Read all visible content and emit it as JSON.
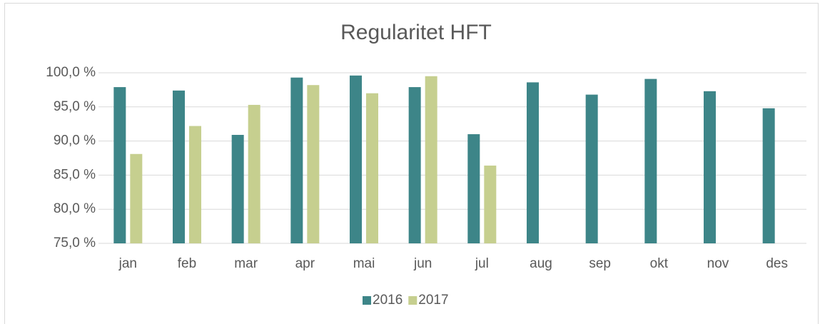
{
  "chart_data": {
    "type": "bar",
    "title": "Regularitet HFT",
    "categories": [
      "jan",
      "feb",
      "mar",
      "apr",
      "mai",
      "jun",
      "jul",
      "aug",
      "sep",
      "okt",
      "nov",
      "des"
    ],
    "series": [
      {
        "name": "2016",
        "color": "#3d8588",
        "values": [
          97.9,
          97.4,
          90.9,
          99.3,
          99.6,
          97.9,
          91.0,
          98.6,
          96.8,
          99.1,
          97.3,
          94.8
        ]
      },
      {
        "name": "2017",
        "color": "#c6cf8f",
        "values": [
          88.1,
          92.2,
          95.3,
          98.2,
          97.0,
          99.5,
          86.4,
          null,
          null,
          null,
          null,
          null
        ]
      }
    ],
    "ylim": [
      75,
      100
    ],
    "yticks": [
      {
        "value": 75,
        "label": "75,0 %"
      },
      {
        "value": 80,
        "label": "80,0 %"
      },
      {
        "value": 85,
        "label": "85,0 %"
      },
      {
        "value": 90,
        "label": "90,0 %"
      },
      {
        "value": 95,
        "label": "95,0 %"
      },
      {
        "value": 100,
        "label": "100,0 %"
      }
    ],
    "grid": true,
    "legend": "bottom"
  }
}
